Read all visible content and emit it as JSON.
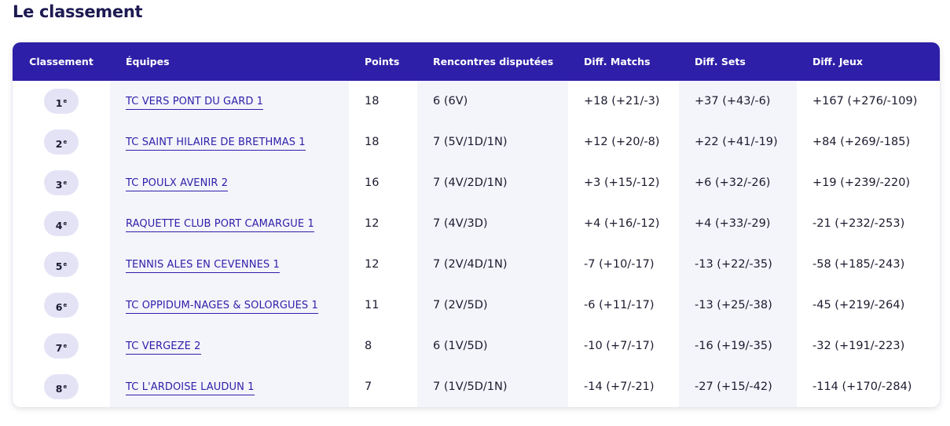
{
  "page": {
    "title": "Le classement"
  },
  "table": {
    "headers": {
      "rank": "Classement",
      "team": "Équipes",
      "points": "Points",
      "played": "Rencontres disputées",
      "diff_matchs": "Diff. Matchs",
      "diff_sets": "Diff. Sets",
      "diff_jeux": "Diff. Jeux"
    },
    "rank_suffix": "e",
    "rows": [
      {
        "rank": "1",
        "team": "TC VERS PONT DU GARD 1",
        "points": "18",
        "played": "6 (6V)",
        "diff_matchs": "+18 (+21/-3)",
        "diff_sets": "+37 (+43/-6)",
        "diff_jeux": "+167 (+276/-109)"
      },
      {
        "rank": "2",
        "team": "TC SAINT HILAIRE DE BRETHMAS 1",
        "points": "18",
        "played": "7 (5V/1D/1N)",
        "diff_matchs": "+12 (+20/-8)",
        "diff_sets": "+22 (+41/-19)",
        "diff_jeux": "+84 (+269/-185)"
      },
      {
        "rank": "3",
        "team": "TC POULX AVENIR 2",
        "points": "16",
        "played": "7 (4V/2D/1N)",
        "diff_matchs": "+3 (+15/-12)",
        "diff_sets": "+6 (+32/-26)",
        "diff_jeux": "+19 (+239/-220)"
      },
      {
        "rank": "4",
        "team": "RAQUETTE CLUB PORT CAMARGUE 1",
        "points": "12",
        "played": "7 (4V/3D)",
        "diff_matchs": "+4 (+16/-12)",
        "diff_sets": "+4 (+33/-29)",
        "diff_jeux": "-21 (+232/-253)"
      },
      {
        "rank": "5",
        "team": "TENNIS ALES EN CEVENNES 1",
        "points": "12",
        "played": "7 (2V/4D/1N)",
        "diff_matchs": "-7 (+10/-17)",
        "diff_sets": "-13 (+22/-35)",
        "diff_jeux": "-58 (+185/-243)"
      },
      {
        "rank": "6",
        "team": "TC OPPIDUM-NAGES & SOLORGUES 1",
        "points": "11",
        "played": "7 (2V/5D)",
        "diff_matchs": "-6 (+11/-17)",
        "diff_sets": "-13 (+25/-38)",
        "diff_jeux": "-45 (+219/-264)"
      },
      {
        "rank": "7",
        "team": "TC VERGEZE 2",
        "points": "8",
        "played": "6 (1V/5D)",
        "diff_matchs": "-10 (+7/-17)",
        "diff_sets": "-16 (+19/-35)",
        "diff_jeux": "-32 (+191/-223)"
      },
      {
        "rank": "8",
        "team": "TC L'ARDOISE LAUDUN 1",
        "points": "7",
        "played": "7 (1V/5D/1N)",
        "diff_matchs": "-14 (+7/-21)",
        "diff_sets": "-27 (+15/-42)",
        "diff_jeux": "-114 (+170/-284)"
      }
    ]
  },
  "colors": {
    "header_bg": "#2e1fa8",
    "link": "#2e1fa8",
    "shaded_column": "#f4f4fb",
    "rank_pill": "#e4e3f6"
  }
}
